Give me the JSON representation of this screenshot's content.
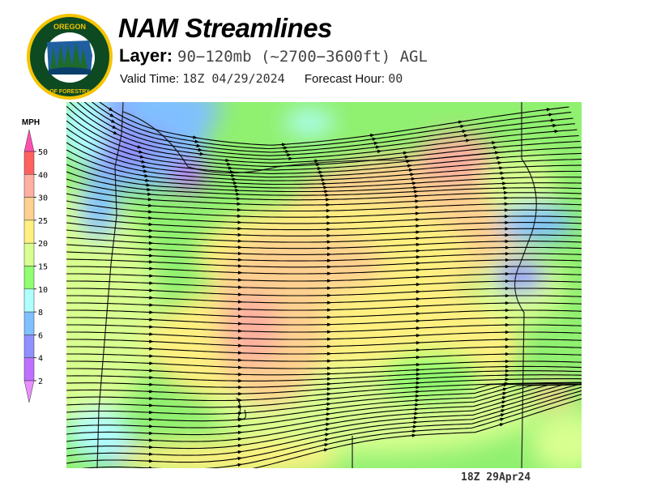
{
  "header": {
    "title": "NAM Streamlines",
    "layer_label": "Layer:",
    "layer_value": "90−120mb (~2700−3600ft) AGL",
    "valid_label": "Valid Time:",
    "valid_value": "18Z 04/29/2024",
    "forecast_label": "Forecast Hour:",
    "forecast_value": "00"
  },
  "logo": {
    "top_text": "OREGON",
    "bottom_text": "DEPARTMENT OF FORESTRY"
  },
  "legend": {
    "unit": "MPH",
    "bins": [
      {
        "label": "2",
        "color": "#c070ff"
      },
      {
        "label": "4",
        "color": "#9090ff"
      },
      {
        "label": "6",
        "color": "#80c0ff"
      },
      {
        "label": "8",
        "color": "#b0ffff"
      },
      {
        "label": "10",
        "color": "#90ff70"
      },
      {
        "label": "15",
        "color": "#d8ff90"
      },
      {
        "label": "20",
        "color": "#fff080"
      },
      {
        "label": "25",
        "color": "#ffd090"
      },
      {
        "label": "30",
        "color": "#ffb0a0"
      },
      {
        "label": "40",
        "color": "#ff6060"
      },
      {
        "label": "50",
        "color": "#ff50b0"
      }
    ],
    "low_cap_color": "#e890ff",
    "high_cap_color": "#ff50b0"
  },
  "map": {
    "field": "wind speed (MPH) with streamlines",
    "background_color": "#90f070"
  },
  "footer": {
    "label": "18Z 29Apr24"
  }
}
